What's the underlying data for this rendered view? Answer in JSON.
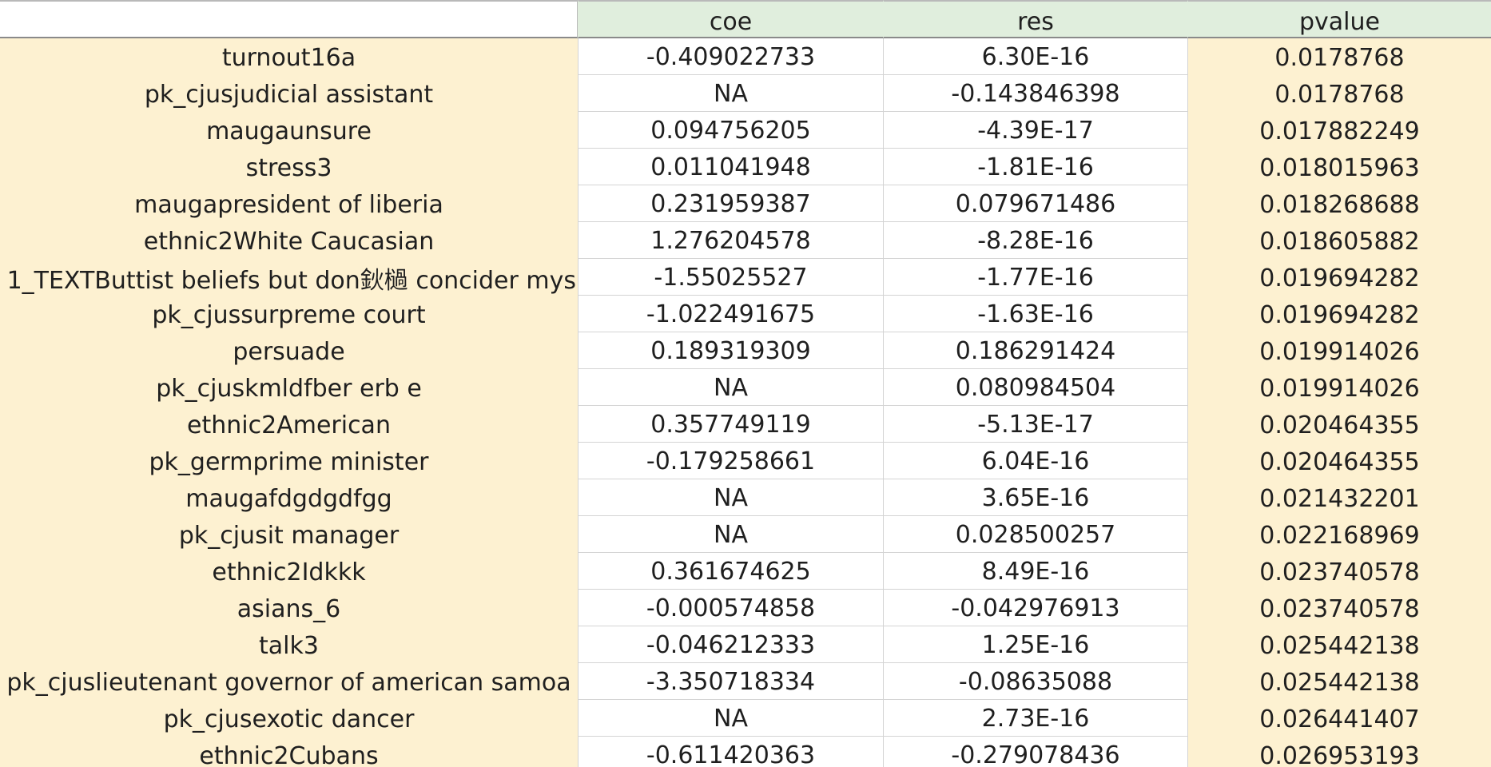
{
  "sheet": {
    "columns": [
      "",
      "coe",
      "res",
      "pvalue"
    ],
    "rows": [
      [
        "turnout16a",
        "-0.409022733",
        "6.30E-16",
        "0.0178768"
      ],
      [
        "pk_cjusjudicial assistant",
        "NA",
        "-0.143846398",
        "0.0178768"
      ],
      [
        "maugaunsure",
        "0.094756205",
        "-4.39E-17",
        "0.017882249"
      ],
      [
        "stress3",
        "0.011041948",
        "-1.81E-16",
        "0.018015963"
      ],
      [
        "maugapresident of liberia",
        "0.231959387",
        "0.079671486",
        "0.018268688"
      ],
      [
        "ethnic2White Caucasian",
        "1.276204578",
        "-8.28E-16",
        "0.018605882"
      ],
      [
        "1_TEXTButtist beliefs but don鈥檛 concider mys",
        "-1.55025527",
        "-1.77E-16",
        "0.019694282"
      ],
      [
        "pk_cjussurpreme court",
        "-1.022491675",
        "-1.63E-16",
        "0.019694282"
      ],
      [
        "persuade",
        "0.189319309",
        "0.186291424",
        "0.019914026"
      ],
      [
        "pk_cjuskmldfber erb e",
        "NA",
        "0.080984504",
        "0.019914026"
      ],
      [
        "ethnic2American",
        "0.357749119",
        "-5.13E-17",
        "0.020464355"
      ],
      [
        "pk_germprime minister",
        "-0.179258661",
        "6.04E-16",
        "0.020464355"
      ],
      [
        "maugafdgdgdfgg",
        "NA",
        "3.65E-16",
        "0.021432201"
      ],
      [
        "pk_cjusit manager",
        "NA",
        "0.028500257",
        "0.022168969"
      ],
      [
        "ethnic2Idkkk",
        "0.361674625",
        "8.49E-16",
        "0.023740578"
      ],
      [
        "asians_6",
        "-0.000574858",
        "-0.042976913",
        "0.023740578"
      ],
      [
        "talk3",
        "-0.046212333",
        "1.25E-16",
        "0.025442138"
      ],
      [
        "pk_cjuslieutenant governor of american samoa",
        "-3.350718334",
        "-0.08635088",
        "0.025442138"
      ],
      [
        "pk_cjusexotic dancer",
        "NA",
        "2.73E-16",
        "0.026441407"
      ],
      [
        "ethnic2Cubans",
        "-0.611420363",
        "-0.279078436",
        "0.026953193"
      ]
    ]
  },
  "colors": {
    "label_column_bg": "#fdf1d1",
    "pvalue_column_bg": "#fdf1d1",
    "header_bg": "#e0eedd",
    "grid_line": "#d4d4d4"
  }
}
